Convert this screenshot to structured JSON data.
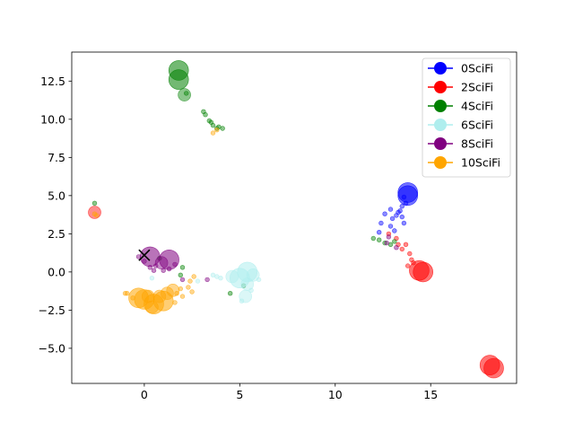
{
  "chart_data": {
    "type": "scatter",
    "title": "",
    "xlabel": "",
    "ylabel": "",
    "xlim": [
      -3.8,
      19.5
    ],
    "ylim": [
      -7.3,
      14.4
    ],
    "xticks": [
      0,
      5,
      10,
      15
    ],
    "xtick_labels": [
      "0",
      "5",
      "10",
      "15"
    ],
    "yticks": [
      -5.0,
      -2.5,
      0.0,
      2.5,
      5.0,
      7.5,
      10.0,
      12.5
    ],
    "ytick_labels": [
      "−5.0",
      "−2.5",
      "0.0",
      "2.5",
      "5.0",
      "7.5",
      "10.0",
      "12.5"
    ],
    "grid": false,
    "legend_position": "top-right",
    "series": [
      {
        "name": "0SciFi",
        "color": "#0000ff",
        "points": [
          [
            13.8,
            5.2,
            "L"
          ],
          [
            13.8,
            5.0,
            "L"
          ],
          [
            13.6,
            4.9,
            "S"
          ],
          [
            13.5,
            4.3,
            "S"
          ],
          [
            13.4,
            4.0,
            "S"
          ],
          [
            13.2,
            3.7,
            "S"
          ],
          [
            13.5,
            3.6,
            "S"
          ],
          [
            13.0,
            3.5,
            "S"
          ],
          [
            12.9,
            4.1,
            "S"
          ],
          [
            13.6,
            3.2,
            "S"
          ],
          [
            12.9,
            3.0,
            "S"
          ],
          [
            12.6,
            3.8,
            "S"
          ],
          [
            13.1,
            2.7,
            "S"
          ],
          [
            12.4,
            3.2,
            "S"
          ],
          [
            12.3,
            2.6,
            "S"
          ],
          [
            13.3,
            3.9,
            "S"
          ],
          [
            13.7,
            4.5,
            "S"
          ]
        ]
      },
      {
        "name": "2SciFi",
        "color": "#ff0000",
        "points": [
          [
            14.6,
            0.0,
            "L"
          ],
          [
            14.4,
            0.1,
            "L"
          ],
          [
            18.1,
            -6.1,
            "L"
          ],
          [
            18.3,
            -6.3,
            "L"
          ],
          [
            13.7,
            1.8,
            "S"
          ],
          [
            13.9,
            1.2,
            "S"
          ],
          [
            14.0,
            0.8,
            "S"
          ],
          [
            13.2,
            2.2,
            "S"
          ],
          [
            13.3,
            1.8,
            "S"
          ],
          [
            13.8,
            0.4,
            "S"
          ],
          [
            14.1,
            0.6,
            "S"
          ],
          [
            12.8,
            2.5,
            "S"
          ],
          [
            13.5,
            1.5,
            "S"
          ],
          [
            -2.6,
            3.9,
            "M"
          ]
        ]
      },
      {
        "name": "4SciFi",
        "color": "#008000",
        "points": [
          [
            1.8,
            13.2,
            "L"
          ],
          [
            1.8,
            12.6,
            "L"
          ],
          [
            2.1,
            11.6,
            "M"
          ],
          [
            3.2,
            10.3,
            "S"
          ],
          [
            3.4,
            9.9,
            "S"
          ],
          [
            3.6,
            9.6,
            "S"
          ],
          [
            3.9,
            9.5,
            "S"
          ],
          [
            4.1,
            9.4,
            "S"
          ],
          [
            3.1,
            10.5,
            "S"
          ],
          [
            3.5,
            9.8,
            "S"
          ],
          [
            3.8,
            9.4,
            "S"
          ],
          [
            2.2,
            11.7,
            "S"
          ],
          [
            12.0,
            2.2,
            "S"
          ],
          [
            12.3,
            2.1,
            "S"
          ],
          [
            12.6,
            1.9,
            "S"
          ],
          [
            12.9,
            1.8,
            "S"
          ],
          [
            13.1,
            2.0,
            "S"
          ],
          [
            -2.6,
            4.5,
            "S"
          ],
          [
            1.9,
            -0.2,
            "S"
          ],
          [
            4.5,
            -1.4,
            "S"
          ],
          [
            5.2,
            -0.9,
            "S"
          ],
          [
            2.0,
            0.3,
            "S"
          ],
          [
            0.8,
            0.9,
            "S"
          ]
        ]
      },
      {
        "name": "6SciFi",
        "color": "#afeeee",
        "points": [
          [
            5.4,
            0.0,
            "L"
          ],
          [
            5.0,
            -0.4,
            "L"
          ],
          [
            5.4,
            -0.8,
            "M"
          ],
          [
            5.3,
            -1.6,
            "M"
          ],
          [
            4.6,
            -0.3,
            "M"
          ],
          [
            5.7,
            -0.2,
            "M"
          ],
          [
            3.8,
            -0.3,
            "S"
          ],
          [
            4.0,
            -0.4,
            "S"
          ],
          [
            5.6,
            -1.2,
            "S"
          ],
          [
            5.1,
            -1.9,
            "S"
          ],
          [
            6.0,
            -0.5,
            "S"
          ],
          [
            3.6,
            -0.2,
            "S"
          ],
          [
            2.8,
            -0.6,
            "S"
          ],
          [
            0.4,
            -0.4,
            "S"
          ]
        ]
      },
      {
        "name": "8SciFi",
        "color": "#800080",
        "points": [
          [
            0.3,
            1.0,
            "L"
          ],
          [
            1.3,
            0.8,
            "L"
          ],
          [
            0.9,
            0.6,
            "M"
          ],
          [
            0.6,
            0.4,
            "S"
          ],
          [
            1.0,
            0.1,
            "S"
          ],
          [
            0.3,
            0.3,
            "S"
          ],
          [
            1.6,
            0.5,
            "S"
          ],
          [
            0.0,
            0.7,
            "S"
          ],
          [
            0.5,
            0.1,
            "S"
          ],
          [
            1.3,
            0.2,
            "S"
          ],
          [
            3.3,
            -0.5,
            "S"
          ],
          [
            2.0,
            -0.5,
            "S"
          ],
          [
            12.7,
            1.9,
            "S"
          ],
          [
            12.8,
            2.3,
            "S"
          ],
          [
            13.2,
            1.6,
            "S"
          ],
          [
            -0.3,
            1.0,
            "S"
          ]
        ]
      },
      {
        "name": "10SciFi",
        "color": "#ffa500",
        "points": [
          [
            0.0,
            -1.8,
            "L"
          ],
          [
            0.5,
            -2.1,
            "L"
          ],
          [
            1.0,
            -1.9,
            "L"
          ],
          [
            -0.3,
            -1.7,
            "L"
          ],
          [
            1.2,
            -1.4,
            "M"
          ],
          [
            1.5,
            -1.2,
            "M"
          ],
          [
            0.8,
            -1.6,
            "M"
          ],
          [
            0.2,
            -1.6,
            "M"
          ],
          [
            0.4,
            -2.3,
            "M"
          ],
          [
            1.6,
            -2.0,
            "S"
          ],
          [
            -0.6,
            -1.7,
            "S"
          ],
          [
            -0.9,
            -1.4,
            "S"
          ],
          [
            2.0,
            -1.6,
            "S"
          ],
          [
            2.3,
            -1.0,
            "S"
          ],
          [
            2.5,
            -1.3,
            "S"
          ],
          [
            1.7,
            -1.4,
            "S"
          ],
          [
            2.6,
            -0.3,
            "S"
          ],
          [
            2.4,
            -0.6,
            "S"
          ],
          [
            3.6,
            9.1,
            "S"
          ],
          [
            3.8,
            9.3,
            "S"
          ],
          [
            -2.6,
            3.8,
            "S"
          ],
          [
            -2.5,
            3.7,
            "S"
          ],
          [
            -1.0,
            -1.4,
            "S"
          ],
          [
            1.9,
            -1.1,
            "S"
          ]
        ]
      }
    ],
    "marker_point": {
      "x": 0.0,
      "y": 1.1,
      "symbol": "x",
      "color": "#000000"
    }
  }
}
